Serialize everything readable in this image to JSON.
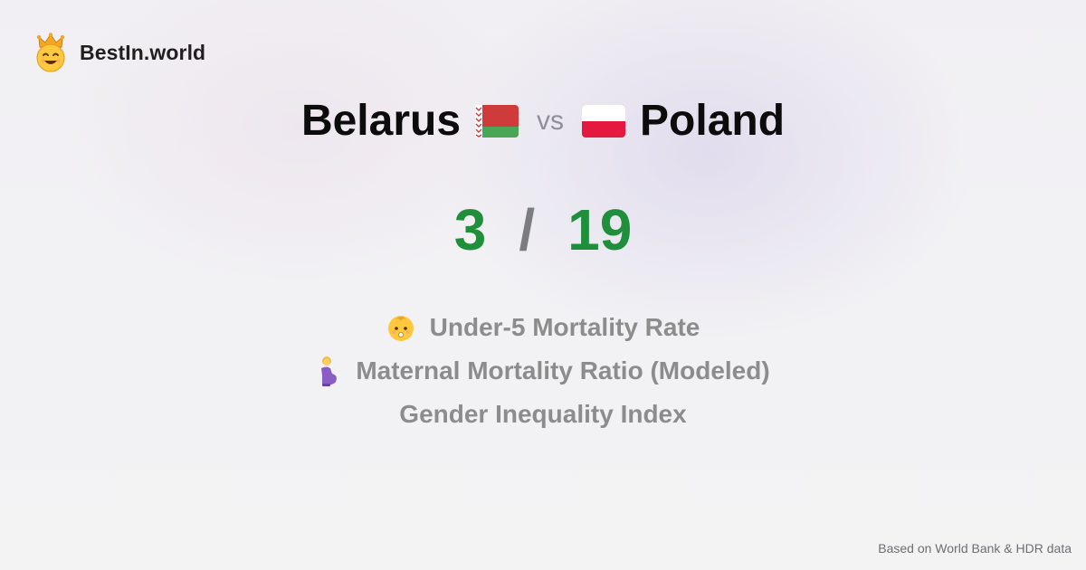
{
  "brand": {
    "name": "BestIn.world",
    "logo_icon": "crown-smiley-logo"
  },
  "comparison": {
    "left_country": "Belarus",
    "left_flag_icon": "belarus-flag-icon",
    "vs_label": "vs",
    "right_country": "Poland",
    "right_flag_icon": "poland-flag-icon"
  },
  "score": {
    "left": "3",
    "separator": "/",
    "right": "19",
    "color": "#1f8f3c"
  },
  "metrics": [
    {
      "label": "Under-5 Mortality Rate",
      "icon": "baby-icon"
    },
    {
      "label": "Maternal Mortality Ratio (Modeled)",
      "icon": "pregnant-woman-icon"
    },
    {
      "label": "Gender Inequality Index",
      "icon": ""
    }
  ],
  "footer": {
    "source": "Based on World Bank & HDR data"
  }
}
